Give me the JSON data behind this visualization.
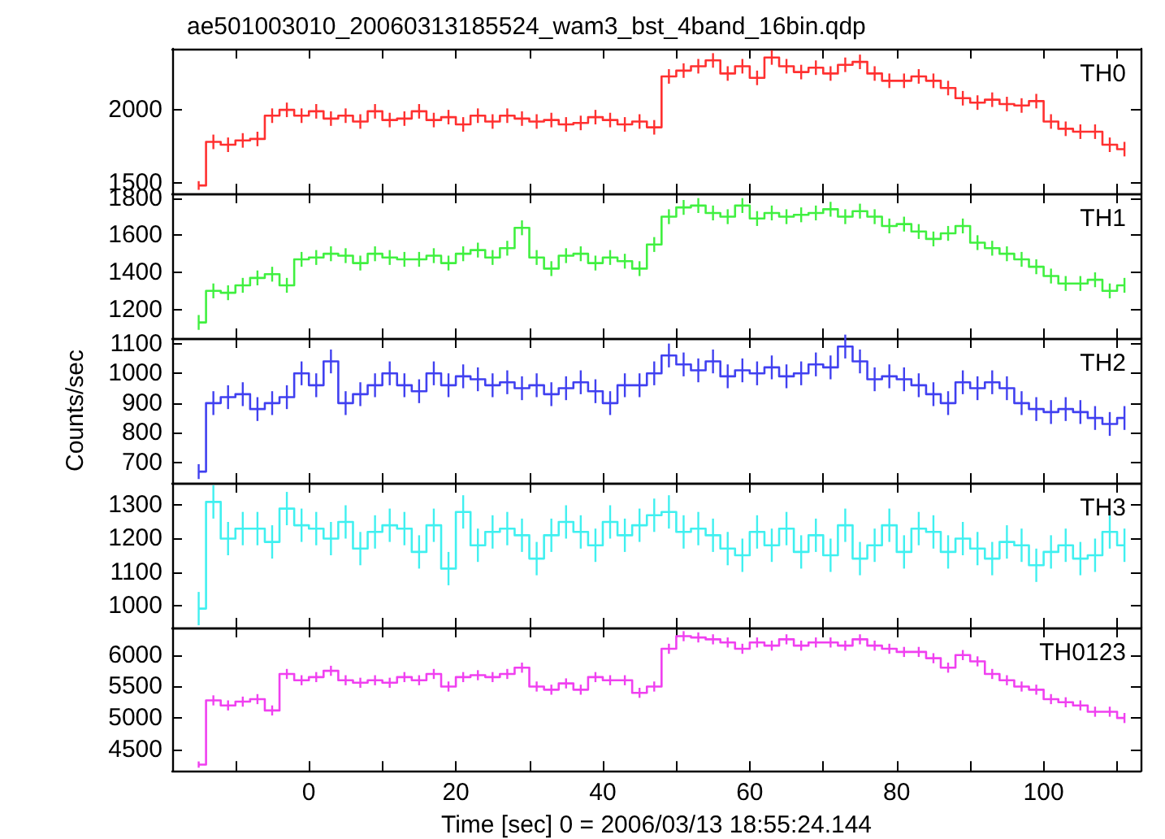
{
  "chart_data": [
    {
      "type": "step",
      "title": "ae501003010_20060313185524_wam3_bst_4band_16bin.qdp",
      "tick_labels": "y",
      "marker": "none",
      "grid": false,
      "legend": false,
      "xlim": [
        -18.6,
        113.2
      ],
      "xticks": [
        {
          "value": -10,
          "label": null
        },
        {
          "value": 0,
          "label": null
        },
        {
          "value": 10,
          "label": null
        },
        {
          "value": 20,
          "label": null
        },
        {
          "value": 30,
          "label": null
        },
        {
          "value": 40,
          "label": null
        },
        {
          "value": 50,
          "label": null
        },
        {
          "value": 60,
          "label": null
        },
        {
          "value": 70,
          "label": null
        },
        {
          "value": 80,
          "label": null
        },
        {
          "value": 90,
          "label": null
        },
        {
          "value": 100,
          "label": null
        },
        {
          "value": 110,
          "label": null
        }
      ],
      "ylim": [
        1425,
        2420
      ],
      "yticks": [
        1500,
        2000
      ],
      "x": [
        -15,
        -13,
        -11,
        -9,
        -7,
        -5,
        -3,
        -1,
        1,
        3,
        5,
        7,
        9,
        11,
        13,
        15,
        17,
        19,
        21,
        23,
        25,
        27,
        29,
        31,
        33,
        35,
        37,
        39,
        41,
        43,
        45,
        47,
        49,
        51,
        53,
        55,
        57,
        59,
        61,
        63,
        65,
        67,
        69,
        71,
        73,
        75,
        77,
        79,
        81,
        83,
        85,
        87,
        89,
        91,
        93,
        95,
        97,
        99,
        101,
        103,
        105,
        107,
        109,
        111
      ],
      "series": [
        {
          "name": "TH0",
          "color": "#ff3030",
          "values": [
            1480,
            1780,
            1760,
            1790,
            1800,
            1960,
            2000,
            1960,
            1990,
            1940,
            1960,
            1920,
            1990,
            1930,
            1940,
            1990,
            1930,
            1950,
            1900,
            1960,
            1920,
            1960,
            1940,
            1920,
            1930,
            1900,
            1910,
            1950,
            1930,
            1900,
            1920,
            1880,
            2230,
            2270,
            2300,
            2340,
            2250,
            2300,
            2220,
            2360,
            2300,
            2260,
            2290,
            2250,
            2310,
            2330,
            2250,
            2200,
            2200,
            2230,
            2200,
            2150,
            2080,
            2050,
            2070,
            2040,
            2030,
            2060,
            1920,
            1870,
            1850,
            1850,
            1760,
            1730
          ],
          "errors": [
            30,
            50,
            50,
            50,
            50,
            50,
            50,
            50,
            50,
            50,
            50,
            50,
            50,
            50,
            50,
            50,
            50,
            50,
            50,
            50,
            50,
            50,
            50,
            50,
            50,
            50,
            50,
            50,
            50,
            50,
            50,
            50,
            50,
            50,
            50,
            50,
            50,
            50,
            50,
            50,
            50,
            50,
            50,
            50,
            50,
            50,
            50,
            50,
            50,
            50,
            50,
            50,
            50,
            50,
            50,
            50,
            50,
            50,
            50,
            50,
            50,
            50,
            50,
            50
          ]
        }
      ]
    },
    {
      "type": "step",
      "tick_labels": "y",
      "marker": "none",
      "grid": false,
      "legend": false,
      "xlim": [
        -18.6,
        113.2
      ],
      "xticks": [
        {
          "value": -10,
          "label": null
        },
        {
          "value": 0,
          "label": null
        },
        {
          "value": 10,
          "label": null
        },
        {
          "value": 20,
          "label": null
        },
        {
          "value": 30,
          "label": null
        },
        {
          "value": 40,
          "label": null
        },
        {
          "value": 50,
          "label": null
        },
        {
          "value": 60,
          "label": null
        },
        {
          "value": 70,
          "label": null
        },
        {
          "value": 80,
          "label": null
        },
        {
          "value": 90,
          "label": null
        },
        {
          "value": 100,
          "label": null
        },
        {
          "value": 110,
          "label": null
        }
      ],
      "ylim": [
        1045,
        1825
      ],
      "yticks": [
        1200,
        1400,
        1600,
        1800
      ],
      "x": [
        -15,
        -13,
        -11,
        -9,
        -7,
        -5,
        -3,
        -1,
        1,
        3,
        5,
        7,
        9,
        11,
        13,
        15,
        17,
        19,
        21,
        23,
        25,
        27,
        29,
        31,
        33,
        35,
        37,
        39,
        41,
        43,
        45,
        47,
        49,
        51,
        53,
        55,
        57,
        59,
        61,
        63,
        65,
        67,
        69,
        71,
        73,
        75,
        77,
        79,
        81,
        83,
        85,
        87,
        89,
        91,
        93,
        95,
        97,
        99,
        101,
        103,
        105,
        107,
        109,
        111
      ],
      "series": [
        {
          "name": "TH1",
          "color": "#40f040",
          "values": [
            1130,
            1300,
            1290,
            1330,
            1370,
            1390,
            1330,
            1470,
            1480,
            1500,
            1490,
            1450,
            1500,
            1480,
            1470,
            1470,
            1490,
            1450,
            1500,
            1520,
            1480,
            1530,
            1640,
            1480,
            1420,
            1490,
            1500,
            1450,
            1480,
            1460,
            1420,
            1550,
            1700,
            1750,
            1760,
            1720,
            1700,
            1760,
            1690,
            1720,
            1700,
            1710,
            1720,
            1740,
            1700,
            1730,
            1700,
            1650,
            1660,
            1620,
            1580,
            1610,
            1650,
            1560,
            1530,
            1500,
            1470,
            1430,
            1380,
            1340,
            1340,
            1360,
            1300,
            1330
          ],
          "errors": [
            40,
            40,
            40,
            40,
            40,
            40,
            40,
            40,
            40,
            40,
            40,
            40,
            40,
            40,
            40,
            40,
            40,
            40,
            40,
            40,
            40,
            40,
            40,
            40,
            40,
            40,
            40,
            40,
            40,
            40,
            40,
            40,
            40,
            40,
            40,
            40,
            40,
            40,
            40,
            40,
            40,
            40,
            40,
            40,
            40,
            40,
            40,
            40,
            40,
            40,
            40,
            40,
            40,
            40,
            40,
            40,
            40,
            40,
            40,
            40,
            40,
            40,
            40,
            40
          ]
        }
      ]
    },
    {
      "type": "step",
      "ylabel": "Counts/sec",
      "tick_labels": "y",
      "marker": "none",
      "grid": false,
      "legend": false,
      "xlim": [
        -18.6,
        113.2
      ],
      "xticks": [
        {
          "value": -10,
          "label": null
        },
        {
          "value": 0,
          "label": null
        },
        {
          "value": 10,
          "label": null
        },
        {
          "value": 20,
          "label": null
        },
        {
          "value": 30,
          "label": null
        },
        {
          "value": 40,
          "label": null
        },
        {
          "value": 50,
          "label": null
        },
        {
          "value": 60,
          "label": null
        },
        {
          "value": 70,
          "label": null
        },
        {
          "value": 80,
          "label": null
        },
        {
          "value": 90,
          "label": null
        },
        {
          "value": 100,
          "label": null
        },
        {
          "value": 110,
          "label": null
        }
      ],
      "ylim": [
        632,
        1118
      ],
      "yticks": [
        700,
        800,
        900,
        1000,
        1100
      ],
      "x": [
        -15,
        -13,
        -11,
        -9,
        -7,
        -5,
        -3,
        -1,
        1,
        3,
        5,
        7,
        9,
        11,
        13,
        15,
        17,
        19,
        21,
        23,
        25,
        27,
        29,
        31,
        33,
        35,
        37,
        39,
        41,
        43,
        45,
        47,
        49,
        51,
        53,
        55,
        57,
        59,
        61,
        63,
        65,
        67,
        69,
        71,
        73,
        75,
        77,
        79,
        81,
        83,
        85,
        87,
        89,
        91,
        93,
        95,
        97,
        99,
        101,
        103,
        105,
        107,
        109,
        111
      ],
      "series": [
        {
          "name": "TH2",
          "color": "#4040f0",
          "values": [
            670,
            900,
            920,
            930,
            880,
            900,
            920,
            1000,
            960,
            1040,
            900,
            930,
            960,
            1000,
            960,
            940,
            1000,
            960,
            990,
            980,
            960,
            970,
            950,
            960,
            930,
            950,
            970,
            940,
            900,
            960,
            960,
            1000,
            1060,
            1030,
            1010,
            1040,
            990,
            1010,
            1000,
            1020,
            990,
            1000,
            1030,
            1020,
            1090,
            1040,
            980,
            990,
            980,
            960,
            930,
            900,
            970,
            950,
            970,
            950,
            900,
            880,
            870,
            880,
            870,
            850,
            830,
            850
          ],
          "errors": [
            25,
            40,
            40,
            40,
            40,
            40,
            40,
            40,
            40,
            40,
            40,
            40,
            40,
            40,
            40,
            40,
            40,
            40,
            40,
            40,
            40,
            40,
            40,
            40,
            40,
            40,
            40,
            40,
            40,
            40,
            40,
            40,
            40,
            40,
            40,
            40,
            40,
            40,
            40,
            40,
            40,
            40,
            40,
            40,
            40,
            40,
            40,
            40,
            40,
            40,
            40,
            40,
            40,
            40,
            40,
            40,
            40,
            40,
            40,
            40,
            40,
            40,
            40,
            40
          ]
        }
      ]
    },
    {
      "type": "step",
      "tick_labels": "y",
      "marker": "none",
      "grid": false,
      "legend": false,
      "xlim": [
        -18.6,
        113.2
      ],
      "xticks": [
        {
          "value": -10,
          "label": null
        },
        {
          "value": 0,
          "label": null
        },
        {
          "value": 10,
          "label": null
        },
        {
          "value": 20,
          "label": null
        },
        {
          "value": 30,
          "label": null
        },
        {
          "value": 40,
          "label": null
        },
        {
          "value": 50,
          "label": null
        },
        {
          "value": 60,
          "label": null
        },
        {
          "value": 70,
          "label": null
        },
        {
          "value": 80,
          "label": null
        },
        {
          "value": 90,
          "label": null
        },
        {
          "value": 100,
          "label": null
        },
        {
          "value": 110,
          "label": null
        }
      ],
      "ylim": [
        933,
        1367
      ],
      "yticks": [
        1000,
        1100,
        1200,
        1300
      ],
      "x": [
        -15,
        -13,
        -11,
        -9,
        -7,
        -5,
        -3,
        -1,
        1,
        3,
        5,
        7,
        9,
        11,
        13,
        15,
        17,
        19,
        21,
        23,
        25,
        27,
        29,
        31,
        33,
        35,
        37,
        39,
        41,
        43,
        45,
        47,
        49,
        51,
        53,
        55,
        57,
        59,
        61,
        63,
        65,
        67,
        69,
        71,
        73,
        75,
        77,
        79,
        81,
        83,
        85,
        87,
        89,
        91,
        93,
        95,
        97,
        99,
        101,
        103,
        105,
        107,
        109,
        111
      ],
      "series": [
        {
          "name": "TH3",
          "color": "#40f0f0",
          "values": [
            990,
            1310,
            1200,
            1230,
            1230,
            1190,
            1290,
            1240,
            1230,
            1200,
            1250,
            1170,
            1220,
            1240,
            1230,
            1160,
            1240,
            1110,
            1280,
            1180,
            1220,
            1230,
            1210,
            1140,
            1210,
            1250,
            1220,
            1180,
            1250,
            1210,
            1240,
            1270,
            1280,
            1220,
            1230,
            1210,
            1170,
            1150,
            1220,
            1180,
            1230,
            1160,
            1210,
            1150,
            1240,
            1140,
            1180,
            1240,
            1160,
            1230,
            1220,
            1160,
            1200,
            1170,
            1140,
            1190,
            1180,
            1120,
            1160,
            1180,
            1140,
            1150,
            1220,
            1180
          ],
          "errors": [
            50,
            50,
            50,
            50,
            50,
            50,
            50,
            50,
            50,
            50,
            50,
            50,
            50,
            50,
            50,
            50,
            50,
            50,
            50,
            50,
            50,
            50,
            50,
            50,
            50,
            50,
            50,
            50,
            50,
            50,
            50,
            50,
            50,
            50,
            50,
            50,
            50,
            50,
            50,
            50,
            50,
            50,
            50,
            50,
            50,
            50,
            50,
            50,
            50,
            50,
            50,
            50,
            50,
            50,
            50,
            50,
            50,
            50,
            50,
            50,
            50,
            50,
            50,
            50
          ]
        }
      ]
    },
    {
      "type": "step",
      "xlabel": "Time [sec] 0 = 2006/03/13 18:55:24.144",
      "marker": "none",
      "grid": false,
      "legend": false,
      "xlim": [
        -18.6,
        113.2
      ],
      "xticks": [
        {
          "value": -10,
          "label": null
        },
        0,
        {
          "value": 10,
          "label": null
        },
        20,
        {
          "value": 30,
          "label": null
        },
        40,
        {
          "value": 50,
          "label": null
        },
        60,
        {
          "value": 70,
          "label": null
        },
        80,
        {
          "value": 90,
          "label": null
        },
        100,
        {
          "value": 110,
          "label": null
        }
      ],
      "ylim": [
        4160,
        6436
      ],
      "yticks": [
        4500,
        5000,
        5500,
        6000
      ],
      "x": [
        -15,
        -13,
        -11,
        -9,
        -7,
        -5,
        -3,
        -1,
        1,
        3,
        5,
        7,
        9,
        11,
        13,
        15,
        17,
        19,
        21,
        23,
        25,
        27,
        29,
        31,
        33,
        35,
        37,
        39,
        41,
        43,
        45,
        47,
        49,
        51,
        53,
        55,
        57,
        59,
        61,
        63,
        65,
        67,
        69,
        71,
        73,
        75,
        77,
        79,
        81,
        83,
        85,
        87,
        89,
        91,
        93,
        95,
        97,
        99,
        101,
        103,
        105,
        107,
        109,
        111
      ],
      "series": [
        {
          "name": "TH0123",
          "color": "#f040f0",
          "values": [
            4260,
            5280,
            5200,
            5260,
            5300,
            5120,
            5700,
            5600,
            5650,
            5750,
            5600,
            5560,
            5600,
            5560,
            5650,
            5600,
            5700,
            5500,
            5650,
            5680,
            5650,
            5700,
            5800,
            5500,
            5450,
            5550,
            5450,
            5650,
            5600,
            5600,
            5400,
            5500,
            6100,
            6300,
            6280,
            6250,
            6200,
            6100,
            6200,
            6150,
            6250,
            6150,
            6200,
            6200,
            6150,
            6250,
            6150,
            6100,
            6050,
            6050,
            5950,
            5800,
            6000,
            5900,
            5700,
            5600,
            5500,
            5450,
            5300,
            5250,
            5200,
            5100,
            5100,
            5000
          ],
          "errors": [
            50,
            80,
            80,
            80,
            80,
            80,
            80,
            80,
            80,
            80,
            80,
            80,
            80,
            80,
            80,
            80,
            80,
            80,
            80,
            80,
            80,
            80,
            80,
            80,
            80,
            80,
            80,
            80,
            80,
            80,
            80,
            80,
            80,
            80,
            80,
            80,
            80,
            80,
            80,
            80,
            80,
            80,
            80,
            80,
            80,
            80,
            80,
            80,
            80,
            80,
            80,
            80,
            80,
            80,
            80,
            80,
            80,
            80,
            80,
            80,
            80,
            80,
            80,
            80
          ]
        }
      ]
    }
  ]
}
